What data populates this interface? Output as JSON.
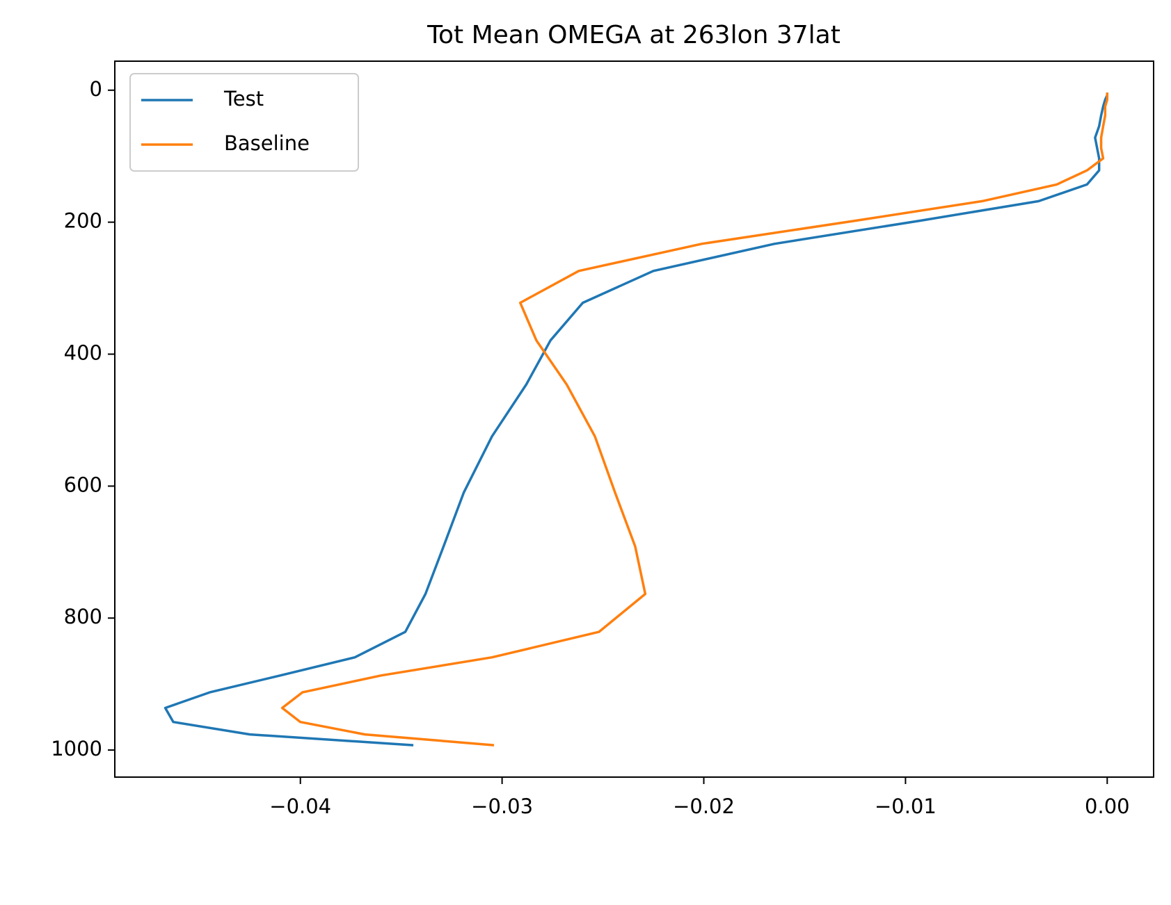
{
  "chart_data": {
    "type": "line",
    "title": "Tot Mean OMEGA at 263lon 37lat",
    "x": [
      3.6,
      7.6,
      14.4,
      24.6,
      38.3,
      54.6,
      72.0,
      87.8,
      103.3,
      121.5,
      142.9,
      168.2,
      197.9,
      232.8,
      273.9,
      322.2,
      379.1,
      445.9,
      524.6,
      609.8,
      691.4,
      763.4,
      820.9,
      859.5,
      887.0,
      912.6,
      936.2,
      957.5,
      976.3,
      992.6
    ],
    "series": [
      {
        "name": "Test",
        "color": "#1f77b4",
        "values": [
          0,
          0,
          -0.0001,
          -0.0002,
          -0.0003,
          -0.0004,
          -0.0006,
          -0.0005,
          -0.0004,
          -0.0004,
          -0.001,
          -0.0034,
          -0.0093,
          -0.0165,
          -0.0225,
          -0.026,
          -0.0276,
          -0.0288,
          -0.0305,
          -0.0319,
          -0.0329,
          -0.0338,
          -0.0348,
          -0.0373,
          -0.041,
          -0.0445,
          -0.0467,
          -0.0463,
          -0.0425,
          -0.0344
        ]
      },
      {
        "name": "Baseline",
        "color": "#ff7f0e",
        "values": [
          0,
          0,
          0,
          -0.0001,
          -0.0001,
          -0.0002,
          -0.0003,
          -0.0003,
          -0.0002,
          -0.001,
          -0.0025,
          -0.0062,
          -0.0125,
          -0.0201,
          -0.0262,
          -0.0291,
          -0.0283,
          -0.0268,
          -0.0254,
          -0.0244,
          -0.0234,
          -0.0229,
          -0.0252,
          -0.0305,
          -0.036,
          -0.0399,
          -0.0409,
          -0.04,
          -0.0368,
          -0.0304
        ]
      }
    ],
    "xlim": [
      -0.0492,
      0.0023
    ],
    "xticks": [
      {
        "value": -0.04,
        "label": "−0.04"
      },
      {
        "value": -0.03,
        "label": "−0.03"
      },
      {
        "value": -0.02,
        "label": "−0.02"
      },
      {
        "value": -0.01,
        "label": "−0.01"
      },
      {
        "value": 0,
        "label": "0.00"
      }
    ],
    "ylim": [
      1041,
      -44
    ],
    "yticks": [
      0,
      200,
      400,
      600,
      800,
      1000
    ],
    "legend": "upper left"
  }
}
